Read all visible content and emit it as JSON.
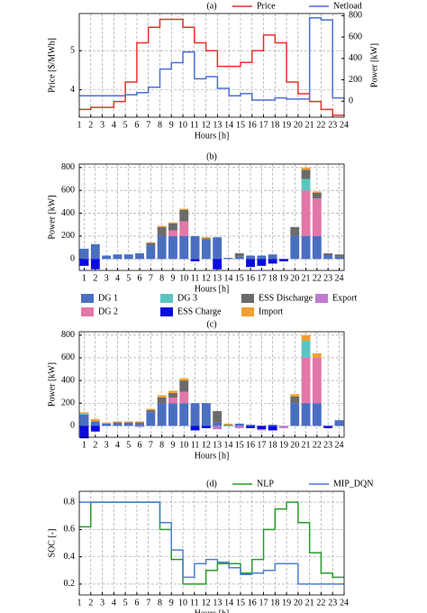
{
  "chart_data": [
    {
      "type": "line",
      "title": "(a)",
      "xlabel": "Hours [h]",
      "ylabel": "Price [$/MWh]",
      "y2label": "Power [kW]",
      "x": [
        1,
        2,
        3,
        4,
        5,
        6,
        7,
        8,
        9,
        10,
        11,
        12,
        13,
        14,
        15,
        16,
        17,
        18,
        19,
        20,
        21,
        22,
        23,
        24
      ],
      "xlim": [
        1,
        24
      ],
      "xticks": [
        1,
        2,
        3,
        4,
        5,
        6,
        7,
        8,
        9,
        10,
        11,
        12,
        13,
        14,
        15,
        16,
        17,
        18,
        19,
        20,
        21,
        22,
        23,
        24
      ],
      "ylim": [
        3.3,
        5.95
      ],
      "yticks": [
        4,
        5
      ],
      "y2lim": [
        -150,
        820
      ],
      "y2ticks": [
        0,
        200,
        400,
        600,
        800
      ],
      "step": true,
      "grid": true,
      "legend": "upper center",
      "series": [
        {
          "name": "Price",
          "color": "#e8302a",
          "values": [
            3.5,
            3.55,
            3.55,
            3.7,
            4.2,
            5.2,
            5.6,
            5.8,
            5.8,
            5.6,
            5.2,
            5.0,
            4.6,
            4.6,
            4.7,
            5.0,
            5.4,
            5.2,
            4.2,
            3.9,
            3.7,
            3.5,
            3.35,
            3.35
          ]
        },
        {
          "name": "Netload",
          "color": "#4a6fd8",
          "axis": "y2",
          "values": [
            50,
            50,
            50,
            50,
            60,
            80,
            130,
            300,
            360,
            460,
            210,
            230,
            120,
            50,
            70,
            10,
            10,
            30,
            20,
            20,
            780,
            760,
            30,
            20
          ]
        }
      ]
    },
    {
      "type": "bar",
      "stacked": true,
      "title": "(b)",
      "xlabel": "Hours [h]",
      "ylabel": "Power [kW]",
      "x": [
        1,
        2,
        3,
        4,
        5,
        6,
        7,
        8,
        9,
        10,
        11,
        12,
        13,
        14,
        15,
        16,
        17,
        18,
        19,
        20,
        21,
        22,
        23,
        24
      ],
      "xlim": [
        0.55,
        24.45
      ],
      "xticks": [
        1,
        2,
        3,
        4,
        5,
        6,
        7,
        8,
        9,
        10,
        11,
        12,
        13,
        14,
        15,
        16,
        17,
        18,
        19,
        20,
        21,
        22,
        23,
        24
      ],
      "ylim": [
        -100,
        830
      ],
      "yticks": [
        0,
        200,
        400,
        600,
        800
      ],
      "grid": true,
      "legend": "below",
      "series": [
        {
          "name": "DG 1",
          "color": "#4a6fc0",
          "values": [
            90,
            130,
            30,
            40,
            40,
            50,
            120,
            200,
            200,
            200,
            200,
            170,
            190,
            10,
            20,
            30,
            30,
            40,
            0,
            200,
            200,
            200,
            30,
            20
          ]
        },
        {
          "name": "DG 2",
          "color": "#e377a8",
          "values": [
            0,
            0,
            0,
            0,
            0,
            0,
            0,
            0,
            50,
            130,
            0,
            0,
            0,
            0,
            0,
            0,
            0,
            0,
            0,
            0,
            400,
            330,
            0,
            0
          ]
        },
        {
          "name": "DG 3",
          "color": "#5cc4c0",
          "values": [
            0,
            0,
            0,
            0,
            0,
            0,
            0,
            0,
            0,
            0,
            0,
            0,
            0,
            0,
            0,
            0,
            0,
            0,
            0,
            0,
            100,
            0,
            0,
            0
          ]
        },
        {
          "name": "ESS Charge",
          "color": "#0a0ae0",
          "values": [
            -60,
            -90,
            0,
            0,
            0,
            0,
            0,
            0,
            0,
            0,
            -20,
            0,
            -90,
            0,
            0,
            -70,
            -60,
            -40,
            -20,
            0,
            0,
            0,
            0,
            0
          ]
        },
        {
          "name": "ESS Discharge",
          "color": "#6b6b6b",
          "values": [
            0,
            0,
            0,
            0,
            0,
            0,
            20,
            80,
            60,
            100,
            0,
            10,
            0,
            0,
            30,
            0,
            0,
            0,
            0,
            80,
            80,
            50,
            20,
            20
          ]
        },
        {
          "name": "Import",
          "color": "#f0a030",
          "values": [
            0,
            0,
            0,
            0,
            0,
            0,
            5,
            10,
            10,
            10,
            0,
            10,
            0,
            0,
            0,
            0,
            0,
            0,
            0,
            0,
            20,
            10,
            0,
            0
          ]
        },
        {
          "name": "Export",
          "color": "#c07ad0",
          "values": [
            0,
            0,
            0,
            0,
            0,
            0,
            0,
            0,
            0,
            0,
            0,
            0,
            0,
            0,
            0,
            0,
            0,
            0,
            0,
            0,
            0,
            0,
            0,
            0
          ]
        }
      ]
    },
    {
      "type": "bar",
      "stacked": true,
      "title": "(c)",
      "xlabel": "Hours [h]",
      "ylabel": "Power [kW]",
      "x": [
        1,
        2,
        3,
        4,
        5,
        6,
        7,
        8,
        9,
        10,
        11,
        12,
        13,
        14,
        15,
        16,
        17,
        18,
        19,
        20,
        21,
        22,
        23,
        24
      ],
      "xlim": [
        0.55,
        24.45
      ],
      "xticks": [
        1,
        2,
        3,
        4,
        5,
        6,
        7,
        8,
        9,
        10,
        11,
        12,
        13,
        14,
        15,
        16,
        17,
        18,
        19,
        20,
        21,
        22,
        23,
        24
      ],
      "ylim": [
        -100,
        830
      ],
      "yticks": [
        0,
        200,
        400,
        600,
        800
      ],
      "grid": true,
      "series": [
        {
          "name": "DG 1",
          "color": "#4a6fc0",
          "values": [
            100,
            40,
            20,
            30,
            30,
            30,
            120,
            200,
            200,
            200,
            200,
            200,
            30,
            10,
            20,
            10,
            0,
            10,
            0,
            200,
            200,
            200,
            0,
            50
          ]
        },
        {
          "name": "DG 2",
          "color": "#e377a8",
          "values": [
            0,
            0,
            0,
            0,
            0,
            0,
            0,
            0,
            50,
            100,
            0,
            0,
            0,
            0,
            0,
            0,
            0,
            0,
            0,
            0,
            400,
            400,
            0,
            0
          ]
        },
        {
          "name": "DG 3",
          "color": "#5cc4c0",
          "values": [
            10,
            0,
            0,
            0,
            0,
            0,
            0,
            0,
            0,
            0,
            0,
            0,
            0,
            0,
            0,
            0,
            0,
            0,
            0,
            0,
            150,
            0,
            0,
            0
          ]
        },
        {
          "name": "ESS Charge",
          "color": "#0a0ae0",
          "values": [
            -110,
            -50,
            0,
            0,
            0,
            0,
            0,
            0,
            0,
            0,
            -40,
            -20,
            0,
            0,
            0,
            -20,
            -30,
            -40,
            0,
            0,
            0,
            0,
            -20,
            0
          ]
        },
        {
          "name": "ESS Discharge",
          "color": "#6b6b6b",
          "values": [
            0,
            0,
            0,
            0,
            0,
            0,
            20,
            50,
            40,
            100,
            0,
            0,
            100,
            0,
            0,
            0,
            0,
            0,
            0,
            60,
            0,
            0,
            0,
            0
          ]
        },
        {
          "name": "Import",
          "color": "#f0a030",
          "values": [
            10,
            20,
            10,
            10,
            10,
            10,
            10,
            20,
            20,
            20,
            0,
            0,
            0,
            10,
            0,
            0,
            0,
            0,
            0,
            20,
            50,
            40,
            0,
            0
          ]
        },
        {
          "name": "Export",
          "color": "#c07ad0",
          "values": [
            0,
            0,
            0,
            0,
            0,
            -10,
            0,
            0,
            0,
            0,
            0,
            0,
            -30,
            0,
            -20,
            0,
            -10,
            0,
            -20,
            0,
            0,
            0,
            0,
            0
          ]
        }
      ]
    },
    {
      "type": "line",
      "title": "(d)",
      "xlabel": "Hours [h]",
      "ylabel": "SOC [-]",
      "x": [
        1,
        2,
        3,
        4,
        5,
        6,
        7,
        8,
        9,
        10,
        11,
        12,
        13,
        14,
        15,
        16,
        17,
        18,
        19,
        20,
        21,
        22,
        23,
        24
      ],
      "xlim": [
        1,
        24
      ],
      "xticks": [
        1,
        2,
        3,
        4,
        5,
        6,
        7,
        8,
        9,
        10,
        11,
        12,
        13,
        14,
        15,
        16,
        17,
        18,
        19,
        20,
        21,
        22,
        23,
        24
      ],
      "ylim": [
        0.12,
        0.88
      ],
      "yticks": [
        0.2,
        0.4,
        0.6,
        0.8
      ],
      "step": true,
      "grid": true,
      "legend": "upper center",
      "series": [
        {
          "name": "NLP",
          "color": "#2a9a2a",
          "values": [
            0.62,
            0.8,
            0.8,
            0.8,
            0.8,
            0.8,
            0.8,
            0.6,
            0.38,
            0.2,
            0.2,
            0.3,
            0.35,
            0.35,
            0.28,
            0.38,
            0.6,
            0.75,
            0.8,
            0.65,
            0.43,
            0.28,
            0.25,
            0.25
          ]
        },
        {
          "name": "MIP_DQN",
          "color": "#4a7fd0",
          "values": [
            0.8,
            0.8,
            0.8,
            0.8,
            0.8,
            0.8,
            0.8,
            0.65,
            0.45,
            0.25,
            0.35,
            0.38,
            0.36,
            0.32,
            0.27,
            0.28,
            0.3,
            0.35,
            0.35,
            0.2,
            0.2,
            0.2,
            0.2,
            0.2
          ]
        }
      ]
    }
  ]
}
